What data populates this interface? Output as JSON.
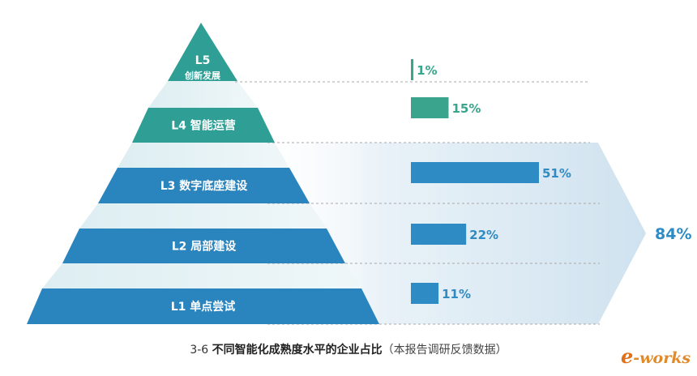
{
  "chart_data": {
    "type": "bar",
    "orientation": "horizontal",
    "categories": [
      "L5 创新发展",
      "L4 智能运营",
      "L3 数字底座建设",
      "L2 局部建设",
      "L1 单点尝试"
    ],
    "levels": [
      {
        "code": "L5",
        "name": "创新发展",
        "value": 1,
        "label": "1%",
        "color": "#3aa58c"
      },
      {
        "code": "L4",
        "name": "智能运营",
        "value": 15,
        "label": "15%",
        "color": "#3aa58c"
      },
      {
        "code": "L3",
        "name": "数字底座建设",
        "value": 51,
        "label": "51%",
        "color": "#2f8bc3"
      },
      {
        "code": "L2",
        "name": "局部建设",
        "value": 22,
        "label": "22%",
        "color": "#2f8bc3"
      },
      {
        "code": "L1",
        "name": "单点尝试",
        "value": 11,
        "label": "11%",
        "color": "#2f8bc3"
      }
    ],
    "values": [
      1,
      15,
      51,
      22,
      11
    ],
    "unit": "%",
    "total": {
      "value": 84,
      "label": "84%",
      "covers": [
        "L3",
        "L2",
        "L1"
      ]
    },
    "grid": false,
    "legend": "none"
  },
  "caption": {
    "number": "3-6",
    "title": "不同智能化成熟度水平的企业占比",
    "note": "（本报告调研反馈数据）"
  },
  "logo": {
    "e": "e",
    "rest": "-works"
  },
  "colors": {
    "teal": "#3aa58c",
    "blue": "#2f8bc3",
    "pyramid_teal": "#2f9e95",
    "pyramid_blue": "#2a84bd",
    "arrow": "#dbe9f3"
  }
}
